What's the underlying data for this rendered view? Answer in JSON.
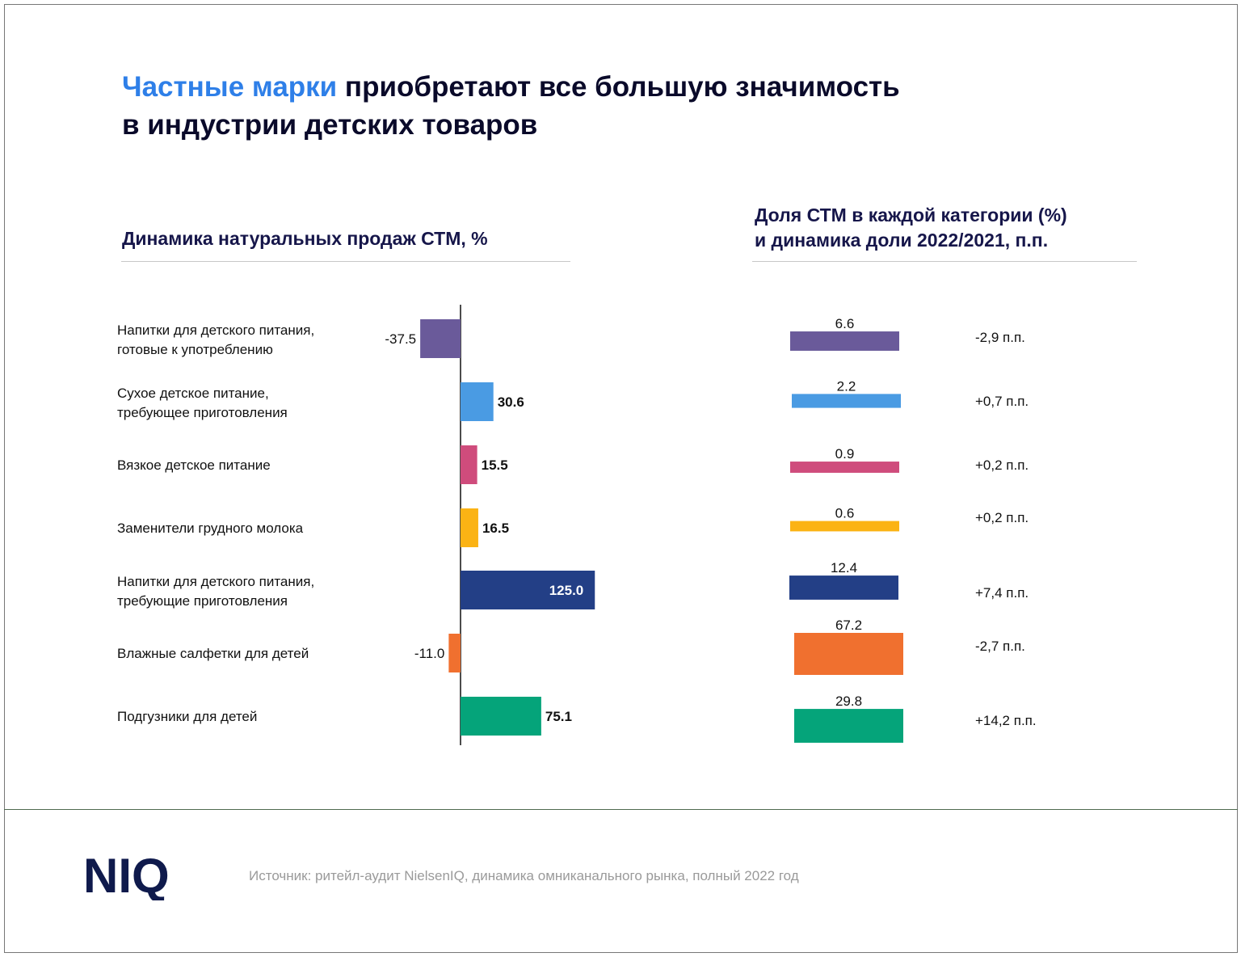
{
  "header": {
    "title_accent": "Частные марки",
    "title_rest": " приобретают все большую значимость",
    "title_line2": "в индустрии детских товаров"
  },
  "left_panel": {
    "subtitle": "Динамика натуральных продаж СТМ, %"
  },
  "right_panel": {
    "subtitle_line1": "Доля СТМ в каждой категории (%)",
    "subtitle_line2": "и динамика доли 2022/2021, п.п."
  },
  "chart_data": [
    {
      "type": "bar",
      "orientation": "horizontal",
      "title": "Динамика натуральных продаж СТМ, %",
      "categories": [
        [
          "Напитки для детского питания,",
          "готовые к употреблению"
        ],
        [
          "Сухое детское питание,",
          "требующее приготовления"
        ],
        [
          "Вязкое детское питание"
        ],
        [
          "Заменители грудного молока"
        ],
        [
          "Напитки для детского питания,",
          "требующие приготовления"
        ],
        [
          "Влажные салфетки для детей"
        ],
        [
          "Подгузники для детей"
        ]
      ],
      "values": [
        -37.5,
        30.6,
        15.5,
        16.5,
        125.0,
        -11.0,
        75.1
      ],
      "value_labels": [
        "-37.5",
        "30.6",
        "15.5",
        "16.5",
        "125.0",
        "-11.0",
        "75.1"
      ],
      "colors": [
        "#6a5a9a",
        "#4a9be3",
        "#cf4c7c",
        "#fbb314",
        "#233f86",
        "#f0702f",
        "#05a47a"
      ]
    },
    {
      "type": "bar",
      "title": "Доля СТМ в каждой категории (%) и динамика доли 2022/2021, п.п.",
      "values": [
        6.6,
        2.2,
        0.9,
        0.6,
        12.4,
        67.2,
        29.8
      ],
      "value_labels": [
        "6.6",
        "2.2",
        "0.9",
        "0.6",
        "12.4",
        "67.2",
        "29.8"
      ],
      "changes": [
        "-2,9 п.п.",
        "+0,7 п.п.",
        "+0,2 п.п.",
        "+0,2 п.п.",
        "+7,4 п.п.",
        "-2,7 п.п.",
        "+14,2 п.п."
      ],
      "colors": [
        "#6a5a9a",
        "#4a9be3",
        "#cf4c7c",
        "#fbb314",
        "#233f86",
        "#f0702f",
        "#05a47a"
      ]
    }
  ],
  "footer": {
    "logo_text": "NIQ",
    "source": "Источник: ритейл-аудит NielsenIQ, динамика омниканального рынка, полный 2022 год"
  }
}
